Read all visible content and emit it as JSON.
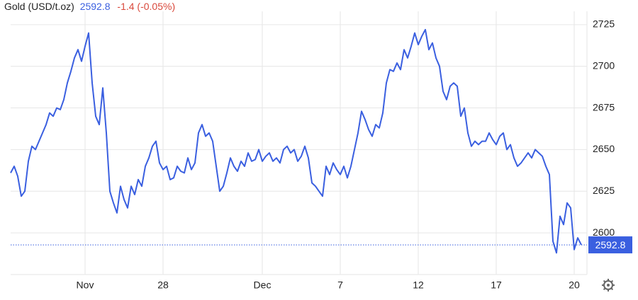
{
  "chart_data": {
    "type": "line",
    "title": "Gold (USD/t.oz)",
    "change": "-1.4 (-0.05%)",
    "categories": [
      null,
      null,
      null,
      null,
      null,
      null,
      null,
      null,
      null,
      null,
      null,
      null,
      null,
      null,
      null,
      null,
      null,
      null,
      null,
      null,
      null,
      "Nov",
      null,
      null,
      null,
      null,
      null,
      null,
      null,
      null,
      null,
      null,
      null,
      null,
      null,
      null,
      null,
      null,
      null,
      null,
      null,
      null,
      null,
      "28",
      null,
      null,
      null,
      null,
      null,
      null,
      null,
      null,
      null,
      null,
      null,
      null,
      null,
      null,
      null,
      null,
      null,
      null,
      null,
      null,
      null,
      null,
      null,
      null,
      null,
      null,
      null,
      "Dec",
      null,
      null,
      null,
      null,
      null,
      null,
      null,
      null,
      null,
      null,
      null,
      null,
      null,
      null,
      null,
      null,
      null,
      null,
      null,
      null,
      null,
      "7",
      null,
      null,
      null,
      null,
      null,
      null,
      null,
      null,
      null,
      null,
      null,
      null,
      null,
      null,
      null,
      null,
      null,
      null,
      null,
      null,
      null,
      "12",
      null,
      null,
      null,
      null,
      null,
      null,
      null,
      null,
      null,
      null,
      null,
      null,
      null,
      null,
      null,
      null,
      null,
      null,
      null,
      null,
      null,
      "17",
      null,
      null,
      null,
      null,
      null,
      null,
      null,
      null,
      null,
      null,
      null,
      null,
      null,
      null,
      null,
      null,
      null,
      null,
      null,
      null,
      null,
      "20",
      null,
      null
    ],
    "series": [
      {
        "color": "#3a5fe0",
        "values": [
          2636,
          2640,
          2634,
          2622,
          2625,
          2643,
          2652,
          2650,
          2655,
          2660,
          2665,
          2672,
          2670,
          2675,
          2674,
          2680,
          2690,
          2697,
          2705,
          2710,
          2703,
          2712,
          2720,
          2690,
          2670,
          2665,
          2687,
          2660,
          2625,
          2618,
          2612,
          2628,
          2620,
          2615,
          2628,
          2623,
          2632,
          2628,
          2640,
          2645,
          2652,
          2655,
          2642,
          2638,
          2640,
          2632,
          2633,
          2640,
          2637,
          2636,
          2645,
          2638,
          2642,
          2660,
          2665,
          2658,
          2660,
          2655,
          2640,
          2625,
          2628,
          2636,
          2645,
          2640,
          2637,
          2643,
          2640,
          2648,
          2643,
          2644,
          2650,
          2643,
          2646,
          2648,
          2643,
          2645,
          2642,
          2650,
          2652,
          2648,
          2650,
          2643,
          2646,
          2652,
          2645,
          2630,
          2628,
          2625,
          2622,
          2640,
          2635,
          2642,
          2638,
          2635,
          2640,
          2633,
          2640,
          2650,
          2660,
          2673,
          2668,
          2662,
          2658,
          2665,
          2663,
          2672,
          2690,
          2698,
          2697,
          2702,
          2698,
          2710,
          2705,
          2712,
          2720,
          2713,
          2718,
          2722,
          2710,
          2714,
          2705,
          2700,
          2685,
          2680,
          2688,
          2690,
          2688,
          2670,
          2675,
          2660,
          2652,
          2655,
          2653,
          2655,
          2655,
          2660,
          2656,
          2653,
          2658,
          2660,
          2650,
          2653,
          2645,
          2640,
          2642,
          2645,
          2648,
          2645,
          2650,
          2648,
          2646,
          2640,
          2635,
          2595,
          2588,
          2610,
          2605,
          2618,
          2615,
          2590,
          2597,
          2592.8
        ]
      }
    ],
    "ylim": [
      2575,
      2733
    ],
    "yticks": [
      2600,
      2625,
      2650,
      2675,
      2700,
      2725
    ],
    "grid": true,
    "change_color": "#d9483b"
  }
}
